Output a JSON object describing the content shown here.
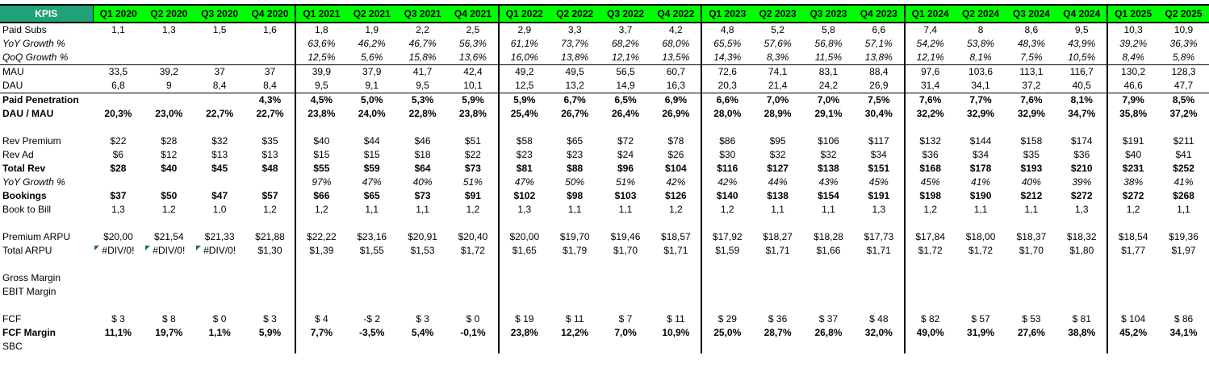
{
  "colors": {
    "kpis_header_bg": "#21A179",
    "kpis_header_text": "#FFFFFF",
    "quarter_header_bg": "#00FF00",
    "error_indicator": "#1E7145",
    "border": "#000000"
  },
  "table": {
    "header": {
      "kpis_label": "KPIS",
      "quarters": [
        "Q1 2020",
        "Q2 2020",
        "Q3 2020",
        "Q4 2020",
        "Q1 2021",
        "Q2 2021",
        "Q3 2021",
        "Q4 2021",
        "Q1 2022",
        "Q2 2022",
        "Q3 2022",
        "Q4 2022",
        "Q1 2023",
        "Q2 2023",
        "Q3 2023",
        "Q4 2023",
        "Q1 2024",
        "Q2 2024",
        "Q3 2024",
        "Q4 2024",
        "Q1 2025",
        "Q2 2025"
      ]
    },
    "group_end_columns": [
      3,
      7,
      11,
      15,
      19
    ],
    "rows": [
      {
        "label": "Paid Subs",
        "style": "normal",
        "values": [
          "1,1",
          "1,3",
          "1,5",
          "1,6",
          "1,8",
          "1,9",
          "2,2",
          "2,5",
          "2,9",
          "3,3",
          "3,7",
          "4,2",
          "4,8",
          "5,2",
          "5,8",
          "6,6",
          "7,4",
          "8",
          "8,6",
          "9,5",
          "10,3",
          "10,9"
        ]
      },
      {
        "label": "YoY Growth %",
        "style": "italic-indent",
        "values": [
          "",
          "",
          "",
          "",
          "63,6%",
          "46,2%",
          "46,7%",
          "56,3%",
          "61,1%",
          "73,7%",
          "68,2%",
          "68,0%",
          "65,5%",
          "57,6%",
          "56,8%",
          "57,1%",
          "54,2%",
          "53,8%",
          "48,3%",
          "43,9%",
          "39,2%",
          "36,3%"
        ]
      },
      {
        "label": "QoQ Growth %",
        "style": "italic-indent",
        "border_bottom": true,
        "values": [
          "",
          "",
          "",
          "",
          "12,5%",
          "5,6%",
          "15,8%",
          "13,6%",
          "16,0%",
          "13,8%",
          "12,1%",
          "13,5%",
          "14,3%",
          "8,3%",
          "11,5%",
          "13,8%",
          "12,1%",
          "8,1%",
          "7,5%",
          "10,5%",
          "8,4%",
          "5,8%"
        ]
      },
      {
        "label": "MAU",
        "style": "normal",
        "values": [
          "33,5",
          "39,2",
          "37",
          "37",
          "39,9",
          "37,9",
          "41,7",
          "42,4",
          "49,2",
          "49,5",
          "56,5",
          "60,7",
          "72,6",
          "74,1",
          "83,1",
          "88,4",
          "97,6",
          "103,6",
          "113,1",
          "116,7",
          "130,2",
          "128,3"
        ]
      },
      {
        "label": "DAU",
        "style": "normal",
        "border_bottom": true,
        "values": [
          "6,8",
          "9",
          "8,4",
          "8,4",
          "9,5",
          "9,1",
          "9,5",
          "10,1",
          "12,5",
          "13,2",
          "14,9",
          "16,3",
          "20,3",
          "21,4",
          "24,2",
          "26,9",
          "31,4",
          "34,1",
          "37,2",
          "40,5",
          "46,6",
          "47,7"
        ]
      },
      {
        "label": "Paid Penetration",
        "style": "bold",
        "values": [
          "",
          "",
          "",
          "4,3%",
          "4,5%",
          "5,0%",
          "5,3%",
          "5,9%",
          "5,9%",
          "6,7%",
          "6,5%",
          "6,9%",
          "6,6%",
          "7,0%",
          "7,0%",
          "7,5%",
          "7,6%",
          "7,7%",
          "7,6%",
          "8,1%",
          "7,9%",
          "8,5%"
        ]
      },
      {
        "label": "DAU / MAU",
        "style": "bold",
        "values": [
          "20,3%",
          "23,0%",
          "22,7%",
          "22,7%",
          "23,8%",
          "24,0%",
          "22,8%",
          "23,8%",
          "25,4%",
          "26,7%",
          "26,4%",
          "26,9%",
          "28,0%",
          "28,9%",
          "29,1%",
          "30,4%",
          "32,2%",
          "32,9%",
          "32,9%",
          "34,7%",
          "35,8%",
          "37,2%"
        ]
      },
      {
        "label": "",
        "style": "blank",
        "values": []
      },
      {
        "label": "Rev Premium",
        "style": "normal",
        "values": [
          "$22",
          "$28",
          "$32",
          "$35",
          "$40",
          "$44",
          "$46",
          "$51",
          "$58",
          "$65",
          "$72",
          "$78",
          "$86",
          "$95",
          "$106",
          "$117",
          "$132",
          "$144",
          "$158",
          "$174",
          "$191",
          "$211"
        ]
      },
      {
        "label": "Rev Ad",
        "style": "normal",
        "values": [
          "$6",
          "$12",
          "$13",
          "$13",
          "$15",
          "$15",
          "$18",
          "$22",
          "$23",
          "$23",
          "$24",
          "$26",
          "$30",
          "$32",
          "$32",
          "$34",
          "$36",
          "$34",
          "$35",
          "$36",
          "$40",
          "$41"
        ]
      },
      {
        "label": "Total Rev",
        "style": "bold",
        "values": [
          "$28",
          "$40",
          "$45",
          "$48",
          "$55",
          "$59",
          "$64",
          "$73",
          "$81",
          "$88",
          "$96",
          "$104",
          "$116",
          "$127",
          "$138",
          "$151",
          "$168",
          "$178",
          "$193",
          "$210",
          "$231",
          "$252"
        ]
      },
      {
        "label": "YoY Growth %",
        "style": "italic-indent",
        "values": [
          "",
          "",
          "",
          "",
          "97%",
          "47%",
          "40%",
          "51%",
          "47%",
          "50%",
          "51%",
          "42%",
          "42%",
          "44%",
          "43%",
          "45%",
          "45%",
          "41%",
          "40%",
          "39%",
          "38%",
          "41%"
        ]
      },
      {
        "label": "Bookings",
        "style": "bold",
        "values": [
          "$37",
          "$50",
          "$47",
          "$57",
          "$66",
          "$65",
          "$73",
          "$91",
          "$102",
          "$98",
          "$103",
          "$126",
          "$140",
          "$138",
          "$154",
          "$191",
          "$198",
          "$190",
          "$212",
          "$272",
          "$272",
          "$268"
        ]
      },
      {
        "label": "Book to Bill",
        "style": "normal",
        "values": [
          "1,3",
          "1,2",
          "1,0",
          "1,2",
          "1,2",
          "1,1",
          "1,1",
          "1,2",
          "1,3",
          "1,1",
          "1,1",
          "1,2",
          "1,2",
          "1,1",
          "1,1",
          "1,3",
          "1,2",
          "1,1",
          "1,1",
          "1,3",
          "1,2",
          "1,1"
        ]
      },
      {
        "label": "",
        "style": "blank",
        "values": []
      },
      {
        "label": "Premium ARPU",
        "style": "normal",
        "values": [
          "$20,00",
          "$21,54",
          "$21,33",
          "$21,88",
          "$22,22",
          "$23,16",
          "$20,91",
          "$20,40",
          "$20,00",
          "$19,70",
          "$19,46",
          "$18,57",
          "$17,92",
          "$18,27",
          "$18,28",
          "$17,73",
          "$17,84",
          "$18,00",
          "$18,37",
          "$18,32",
          "$18,54",
          "$19,36"
        ]
      },
      {
        "label": "Total ARPU",
        "style": "normal",
        "values": [
          "#DIV/0!",
          "#DIV/0!",
          "#DIV/0!",
          "$1,30",
          "$1,39",
          "$1,55",
          "$1,53",
          "$1,72",
          "$1,65",
          "$1,79",
          "$1,70",
          "$1,71",
          "$1,59",
          "$1,71",
          "$1,66",
          "$1,71",
          "$1,72",
          "$1,72",
          "$1,70",
          "$1,80",
          "$1,77",
          "$1,97"
        ]
      },
      {
        "label": "",
        "style": "blank",
        "values": []
      },
      {
        "label": "Gross Margin",
        "style": "normal",
        "values": []
      },
      {
        "label": "EBIT Margin",
        "style": "normal",
        "values": []
      },
      {
        "label": "",
        "style": "blank",
        "values": []
      },
      {
        "label": "FCF",
        "style": "normal",
        "values": [
          "$ 3",
          "$ 8",
          "$ 0",
          "$ 3",
          "$ 4",
          "-$ 2",
          "$ 3",
          "$ 0",
          "$ 19",
          "$ 11",
          "$ 7",
          "$ 11",
          "$ 29",
          "$ 36",
          "$ 37",
          "$ 48",
          "$ 82",
          "$ 57",
          "$ 53",
          "$ 81",
          "$ 104",
          "$ 86"
        ]
      },
      {
        "label": "FCF Margin",
        "style": "bold",
        "values": [
          "11,1%",
          "19,7%",
          "1,1%",
          "5,9%",
          "7,7%",
          "-3,5%",
          "5,4%",
          "-0,1%",
          "23,8%",
          "12,2%",
          "7,0%",
          "10,9%",
          "25,0%",
          "28,7%",
          "26,8%",
          "32,0%",
          "49,0%",
          "31,9%",
          "27,6%",
          "38,8%",
          "45,2%",
          "34,1%"
        ]
      },
      {
        "label": "SBC",
        "style": "normal",
        "values": []
      }
    ],
    "error_value": "#DIV/0!"
  }
}
